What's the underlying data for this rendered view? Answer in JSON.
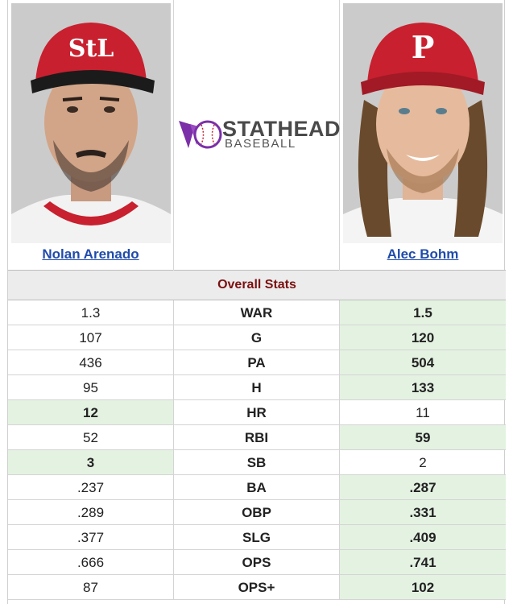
{
  "players": {
    "left": {
      "name": "Nolan Arenado"
    },
    "right": {
      "name": "Alec Bohm"
    }
  },
  "logo": {
    "line1": "STATHEAD",
    "line2": "BASEBALL"
  },
  "section_title": "Overall Stats",
  "stats": [
    {
      "label": "WAR",
      "left": "1.3",
      "right": "1.5",
      "winner": "right"
    },
    {
      "label": "G",
      "left": "107",
      "right": "120",
      "winner": "right"
    },
    {
      "label": "PA",
      "left": "436",
      "right": "504",
      "winner": "right"
    },
    {
      "label": "H",
      "left": "95",
      "right": "133",
      "winner": "right"
    },
    {
      "label": "HR",
      "left": "12",
      "right": "11",
      "winner": "left"
    },
    {
      "label": "RBI",
      "left": "52",
      "right": "59",
      "winner": "right"
    },
    {
      "label": "SB",
      "left": "3",
      "right": "2",
      "winner": "left"
    },
    {
      "label": "BA",
      "left": ".237",
      "right": ".287",
      "winner": "right"
    },
    {
      "label": "OBP",
      "left": ".289",
      "right": ".331",
      "winner": "right"
    },
    {
      "label": "SLG",
      "left": ".377",
      "right": ".409",
      "winner": "right"
    },
    {
      "label": "OPS",
      "left": ".666",
      "right": ".741",
      "winner": "right"
    },
    {
      "label": "OPS+",
      "left": "87",
      "right": "102",
      "winner": "right"
    }
  ],
  "colors": {
    "winner_highlight": "#e4f2e2",
    "link": "#1f4bab",
    "section_title": "#7b1010",
    "logo_accent": "#7b2fa8",
    "cap_red": "#c8202f"
  }
}
